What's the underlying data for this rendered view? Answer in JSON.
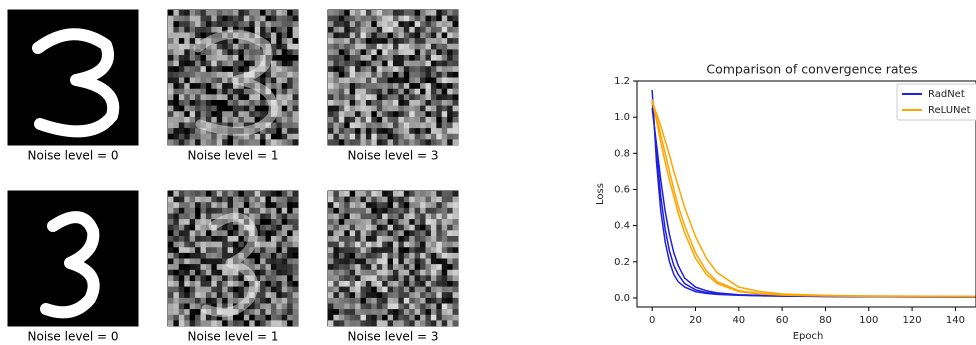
{
  "panels": [
    {
      "caption": "Noise level = 0"
    },
    {
      "caption": "Noise level = 1"
    },
    {
      "caption": "Noise level = 3"
    },
    {
      "caption": "Noise level = 0"
    },
    {
      "caption": "Noise level = 1"
    },
    {
      "caption": "Noise level = 3"
    }
  ],
  "chart_data": {
    "type": "line",
    "title": "Comparison of convergence rates",
    "x_label": "Epoch",
    "y_label": "Loss",
    "x": [
      0,
      2,
      4,
      6,
      8,
      10,
      12,
      15,
      20,
      25,
      30,
      40,
      50,
      60,
      80,
      100,
      120,
      150
    ],
    "series": [
      {
        "name": "RadNet",
        "color": "#1f1fe0",
        "runs": [
          [
            1.15,
            0.75,
            0.48,
            0.31,
            0.2,
            0.13,
            0.09,
            0.06,
            0.035,
            0.025,
            0.02,
            0.015,
            0.012,
            0.01,
            0.008,
            0.007,
            0.006,
            0.005
          ],
          [
            1.1,
            0.8,
            0.56,
            0.38,
            0.26,
            0.18,
            0.13,
            0.08,
            0.045,
            0.03,
            0.022,
            0.016,
            0.013,
            0.011,
            0.009,
            0.007,
            0.006,
            0.005
          ],
          [
            1.05,
            0.85,
            0.65,
            0.48,
            0.35,
            0.25,
            0.18,
            0.11,
            0.06,
            0.04,
            0.028,
            0.018,
            0.014,
            0.012,
            0.009,
            0.008,
            0.007,
            0.006
          ]
        ]
      },
      {
        "name": "ReLUNet",
        "color": "#ffa500",
        "runs": [
          [
            1.1,
            1.0,
            0.9,
            0.8,
            0.7,
            0.6,
            0.51,
            0.4,
            0.25,
            0.15,
            0.09,
            0.04,
            0.025,
            0.018,
            0.012,
            0.01,
            0.009,
            0.008
          ],
          [
            1.08,
            1.02,
            0.95,
            0.87,
            0.79,
            0.7,
            0.62,
            0.5,
            0.34,
            0.22,
            0.14,
            0.06,
            0.035,
            0.022,
            0.014,
            0.011,
            0.01,
            0.009
          ],
          [
            1.09,
            0.98,
            0.86,
            0.75,
            0.65,
            0.56,
            0.47,
            0.36,
            0.22,
            0.13,
            0.08,
            0.035,
            0.022,
            0.016,
            0.011,
            0.009,
            0.008,
            0.007
          ]
        ]
      }
    ],
    "xlim": [
      -7,
      149.5
    ],
    "ylim": [
      -0.05,
      1.2
    ],
    "xticks": [
      0,
      20,
      40,
      60,
      80,
      100,
      120,
      140
    ],
    "yticks": [
      {
        "value": 0,
        "label": "0.0"
      },
      {
        "value": 0.2,
        "label": "0.2"
      },
      {
        "value": 0.4,
        "label": "0.4"
      },
      {
        "value": 0.6,
        "label": "0.6"
      },
      {
        "value": 0.8,
        "label": "0.8"
      },
      {
        "value": 1.0,
        "label": "1.0"
      },
      {
        "value": 1.2,
        "label": "1.2"
      }
    ],
    "grid": false,
    "legend": "upper right"
  }
}
